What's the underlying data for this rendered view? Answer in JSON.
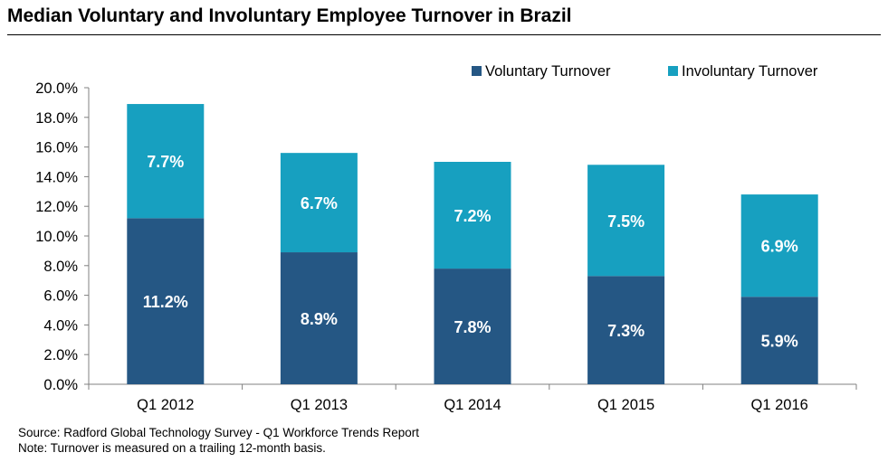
{
  "title": "Median Voluntary and Involuntary Employee Turnover in Brazil",
  "footer": {
    "source": "Source: Radford Global Technology Survey - Q1 Workforce Trends Report",
    "note": "Note: Turnover is measured on a trailing 12-month basis."
  },
  "colors": {
    "voluntary": "#255784",
    "involuntary": "#17a0c0"
  },
  "chart_data": {
    "type": "bar",
    "stacked": true,
    "categories": [
      "Q1 2012",
      "Q1 2013",
      "Q1 2014",
      "Q1 2015",
      "Q1 2016"
    ],
    "series": [
      {
        "name": "Voluntary Turnover",
        "values": [
          11.2,
          8.9,
          7.8,
          7.3,
          5.9
        ],
        "labels": [
          "11.2%",
          "8.9%",
          "7.8%",
          "7.3%",
          "5.9%"
        ]
      },
      {
        "name": "Involuntary Turnover",
        "values": [
          7.7,
          6.7,
          7.2,
          7.5,
          6.9
        ],
        "labels": [
          "7.7%",
          "6.7%",
          "7.2%",
          "7.5%",
          "6.9%"
        ]
      }
    ],
    "ylim": [
      0,
      20
    ],
    "yticks": [
      "0.0%",
      "2.0%",
      "4.0%",
      "6.0%",
      "8.0%",
      "10.0%",
      "12.0%",
      "14.0%",
      "16.0%",
      "18.0%",
      "20.0%"
    ],
    "legend_position": "top-right",
    "grid": false
  }
}
